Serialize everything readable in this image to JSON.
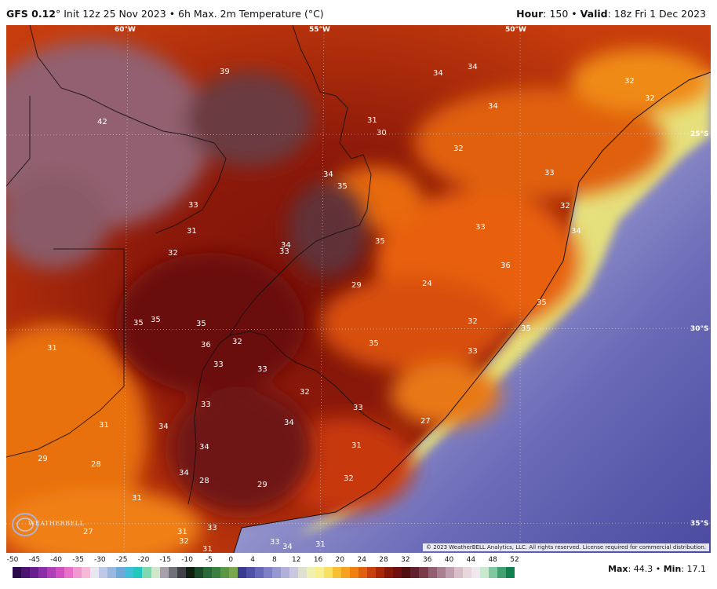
{
  "header": {
    "model": "GFS 0.12",
    "model_unit": "°",
    "init": "Init 12z 25 Nov 2023",
    "separator": "•",
    "product": "6h Max. 2m Temperature (°C)",
    "hour_label": "Hour",
    "hour_value": "150",
    "valid_label": "Valid",
    "valid_value": "18z Fri 1 Dec 2023"
  },
  "map": {
    "lon_labels": [
      "60°W",
      "55°W",
      "50°W"
    ],
    "lat_labels": [
      "25°S",
      "30°S",
      "35°S"
    ],
    "copyright": "© 2023 WeatherBELL Analytics, LLC. All rights reserved. License required for commercial distribution.",
    "logo_text": "WEATHERBELL",
    "temperature_labels": [
      "39",
      "42",
      "34",
      "34",
      "32",
      "32",
      "34",
      "31",
      "30",
      "32",
      "34",
      "33",
      "35",
      "32",
      "33",
      "34",
      "35",
      "36",
      "34",
      "33",
      "33",
      "31",
      "32",
      "29",
      "24",
      "35",
      "35",
      "35",
      "35",
      "35",
      "36",
      "32",
      "33",
      "33",
      "35",
      "31",
      "32",
      "33",
      "32",
      "33",
      "27",
      "29",
      "31",
      "31",
      "34",
      "33",
      "34",
      "34",
      "34",
      "28",
      "32",
      "29",
      "28",
      "31",
      "31",
      "33",
      "33",
      "31",
      "27",
      "32",
      "31",
      "34"
    ]
  },
  "colorbar": {
    "ticks": [
      "-50",
      "-45",
      "-40",
      "-35",
      "-30",
      "-25",
      "-20",
      "-15",
      "-10",
      "-5",
      "0",
      "4",
      "8",
      "12",
      "16",
      "20",
      "24",
      "28",
      "32",
      "36",
      "40",
      "44",
      "48",
      "52"
    ],
    "colors": [
      "#2a0a4a",
      "#4b1470",
      "#6a1f8f",
      "#8a2fa8",
      "#b040b8",
      "#d050c0",
      "#e870c8",
      "#f098d0",
      "#f8b8d8",
      "#e8e8f0",
      "#c0c8e8",
      "#98b8e0",
      "#70a8d8",
      "#40c0d8",
      "#20c8c0",
      "#80d8b0",
      "#d0e8c8",
      "#a8a0a8",
      "#707078",
      "#404048",
      "#102010",
      "#1a4a2a",
      "#2a6a3a",
      "#3a8040",
      "#5a9848",
      "#7aa850",
      "#3a3a90",
      "#5050a8",
      "#6868b8",
      "#8080c8",
      "#9898d0",
      "#b0b0d8",
      "#c8c8e0",
      "#e0e0d0",
      "#f0f0b0",
      "#f8f090",
      "#f8e060",
      "#f8c030",
      "#f8a020",
      "#f08010",
      "#e06010",
      "#c84010",
      "#a82808",
      "#881808",
      "#701010",
      "#501010",
      "#602030",
      "#7a3a48",
      "#926070",
      "#a88090",
      "#c0a0b0",
      "#d8c0c8",
      "#e8d8dc",
      "#f0e8f0",
      "#c8e8d0",
      "#80c8a0",
      "#40a070",
      "#108050"
    ]
  },
  "stats": {
    "max_label": "Max",
    "max_value": "44.3",
    "separator": "•",
    "min_label": "Min",
    "min_value": "17.1"
  }
}
